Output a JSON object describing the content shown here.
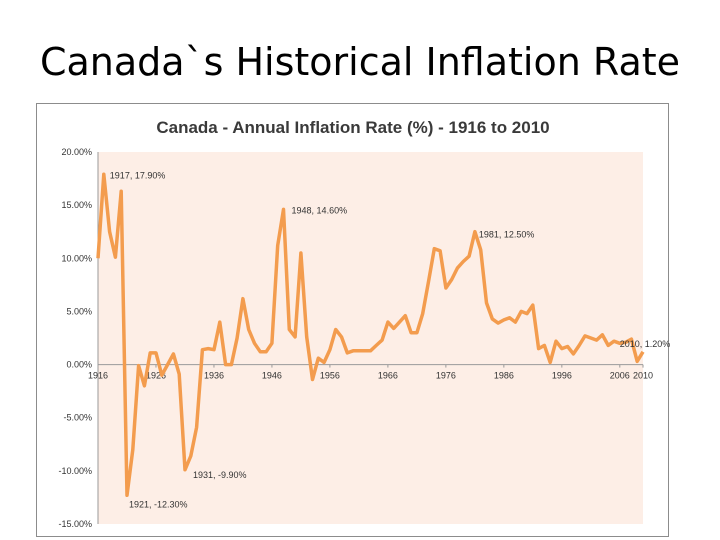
{
  "slide": {
    "title": "Canada`s Historical Inflation Rate"
  },
  "chart_data": {
    "type": "line",
    "title": "Canada - Annual Inflation Rate (%) - 1916 to 2010",
    "xlabel": "",
    "ylabel": "",
    "xlim": [
      1916,
      2010
    ],
    "ylim": [
      -15,
      20
    ],
    "grid": false,
    "legend": "none",
    "colors": {
      "line": "#f39c4e",
      "plot_background": "#fdeee6"
    },
    "x_ticks": [
      "1916",
      "1926",
      "1936",
      "1946",
      "1956",
      "1966",
      "1976",
      "1986",
      "1996",
      "2006",
      "2010"
    ],
    "y_ticks": [
      {
        "value": 20,
        "label": "20.00%"
      },
      {
        "value": 15,
        "label": "15.00%"
      },
      {
        "value": 10,
        "label": "10.00%"
      },
      {
        "value": 5,
        "label": "5.00%"
      },
      {
        "value": 0,
        "label": "0.00%"
      },
      {
        "value": -5,
        "label": "-5.00%"
      },
      {
        "value": -10,
        "label": "-10.00%"
      },
      {
        "value": -15,
        "label": "-15.00%"
      }
    ],
    "series": [
      {
        "name": "",
        "x": [
          1916,
          1917,
          1918,
          1919,
          1920,
          1921,
          1922,
          1923,
          1924,
          1925,
          1926,
          1927,
          1928,
          1929,
          1930,
          1931,
          1932,
          1933,
          1934,
          1935,
          1936,
          1937,
          1938,
          1939,
          1940,
          1941,
          1942,
          1943,
          1944,
          1945,
          1946,
          1947,
          1948,
          1949,
          1950,
          1951,
          1952,
          1953,
          1954,
          1955,
          1956,
          1957,
          1958,
          1959,
          1960,
          1961,
          1962,
          1963,
          1964,
          1965,
          1966,
          1967,
          1968,
          1969,
          1970,
          1971,
          1972,
          1973,
          1974,
          1975,
          1976,
          1977,
          1978,
          1979,
          1980,
          1981,
          1982,
          1983,
          1984,
          1985,
          1986,
          1987,
          1988,
          1989,
          1990,
          1991,
          1992,
          1993,
          1994,
          1995,
          1996,
          1997,
          1998,
          1999,
          2000,
          2001,
          2002,
          2003,
          2004,
          2005,
          2006,
          2007,
          2008,
          2009,
          2010
        ],
        "values": [
          10,
          17.9,
          12.5,
          10.1,
          16.3,
          -12.3,
          -8,
          -0.1,
          -2,
          1.1,
          1.1,
          -1,
          0,
          1,
          -0.9,
          -9.9,
          -8.6,
          -5.9,
          1.4,
          1.5,
          1.4,
          4,
          0,
          0,
          2.5,
          6.2,
          3.3,
          2,
          1.2,
          1.2,
          2,
          11.2,
          14.6,
          3.3,
          2.6,
          10.5,
          2.6,
          -1.4,
          0.6,
          0.2,
          1.4,
          3.3,
          2.6,
          1.1,
          1.3,
          1.3,
          1.3,
          1.3,
          1.8,
          2.3,
          4,
          3.4,
          4,
          4.6,
          3,
          3,
          4.8,
          7.8,
          10.9,
          10.7,
          7.2,
          8,
          9.1,
          9.7,
          10.2,
          12.5,
          10.8,
          5.8,
          4.3,
          3.9,
          4.2,
          4.4,
          4,
          5,
          4.8,
          5.6,
          1.5,
          1.8,
          0.2,
          2.2,
          1.5,
          1.7,
          1,
          1.8,
          2.7,
          2.5,
          2.3,
          2.8,
          1.8,
          2.2,
          2,
          2.1,
          2.4,
          0.3,
          1.2
        ]
      }
    ],
    "annotations": [
      {
        "text": "1917, 17.90%",
        "x": 1917,
        "y": 17.9
      },
      {
        "text": "1921, -12.30%",
        "x": 1921,
        "y": -12.3
      },
      {
        "text": "1931, -9.90%",
        "x": 1931,
        "y": -9.9
      },
      {
        "text": "1948, 14.60%",
        "x": 1948,
        "y": 14.6
      },
      {
        "text": "1981, 12.50%",
        "x": 1981,
        "y": 12.5
      },
      {
        "text": "2010, 1.20%",
        "x": 2010,
        "y": 1.2
      }
    ]
  }
}
